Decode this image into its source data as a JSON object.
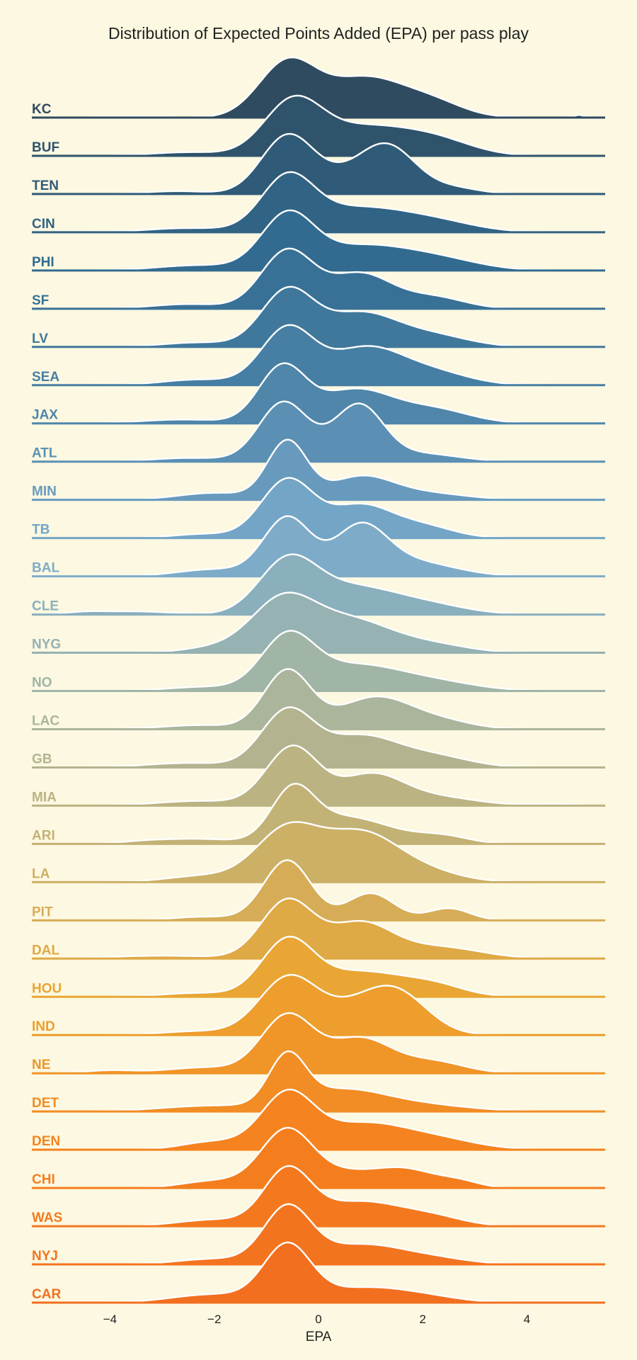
{
  "chart_data": {
    "type": "area",
    "subtype": "ridgeline-density",
    "title": "Distribution of Expected Points Added (EPA) per pass play",
    "xlabel": "EPA",
    "ylabel": "",
    "xlim": [
      -5.5,
      5.5
    ],
    "xticks": [
      -4,
      -2,
      0,
      2,
      4
    ],
    "xtick_labels": [
      "−4",
      "−2",
      "0",
      "2",
      "4"
    ],
    "grid": false,
    "legend": "none",
    "color_scale": [
      "#2f4b60",
      "#316a8e",
      "#4c83a8",
      "#7aabcc",
      "#a7b6a2",
      "#c6b270",
      "#eba531",
      "#f5821e",
      "#f26f1f"
    ],
    "outline_color": "#ffffff",
    "series": [
      {
        "name": "KC",
        "components": [
          [
            -0.6,
            0.55,
            1.0
          ],
          [
            0.9,
            0.75,
            0.72
          ],
          [
            2.2,
            0.6,
            0.25
          ],
          [
            5.0,
            0.08,
            0.05
          ],
          [
            -3.6,
            0.5,
            0.02
          ]
        ]
      },
      {
        "name": "BUF",
        "components": [
          [
            -0.5,
            0.55,
            1.0
          ],
          [
            0.9,
            0.9,
            0.55
          ],
          [
            2.3,
            0.7,
            0.25
          ],
          [
            -2.5,
            0.7,
            0.07
          ]
        ]
      },
      {
        "name": "TEN",
        "components": [
          [
            -0.6,
            0.5,
            1.0
          ],
          [
            1.3,
            0.55,
            0.85
          ],
          [
            0.3,
            0.5,
            0.2
          ],
          [
            2.6,
            0.5,
            0.1
          ],
          [
            -2.7,
            0.6,
            0.05
          ]
        ]
      },
      {
        "name": "CIN",
        "components": [
          [
            -0.6,
            0.5,
            1.0
          ],
          [
            0.7,
            0.9,
            0.45
          ],
          [
            2.2,
            0.8,
            0.2
          ],
          [
            -2.5,
            0.8,
            0.08
          ]
        ]
      },
      {
        "name": "PHI",
        "components": [
          [
            -0.6,
            0.5,
            1.0
          ],
          [
            0.8,
            0.9,
            0.45
          ],
          [
            2.3,
            0.8,
            0.2
          ],
          [
            -2.3,
            0.8,
            0.1
          ]
        ]
      },
      {
        "name": "SF",
        "components": [
          [
            -0.6,
            0.5,
            1.0
          ],
          [
            0.8,
            0.6,
            0.6
          ],
          [
            2.2,
            0.6,
            0.2
          ],
          [
            -2.5,
            0.7,
            0.08
          ]
        ]
      },
      {
        "name": "LV",
        "components": [
          [
            -0.6,
            0.5,
            1.0
          ],
          [
            0.8,
            0.7,
            0.6
          ],
          [
            2.2,
            0.7,
            0.2
          ],
          [
            -2.3,
            0.7,
            0.08
          ]
        ]
      },
      {
        "name": "SEA",
        "components": [
          [
            -0.6,
            0.5,
            1.0
          ],
          [
            0.9,
            0.7,
            0.65
          ],
          [
            2.2,
            0.7,
            0.22
          ],
          [
            -2.3,
            0.7,
            0.1
          ]
        ]
      },
      {
        "name": "JAX",
        "components": [
          [
            -0.7,
            0.45,
            1.0
          ],
          [
            0.7,
            0.7,
            0.6
          ],
          [
            2.2,
            0.7,
            0.25
          ],
          [
            -2.6,
            0.8,
            0.07
          ]
        ]
      },
      {
        "name": "ATL",
        "components": [
          [
            -0.7,
            0.45,
            1.0
          ],
          [
            0.8,
            0.45,
            0.95
          ],
          [
            0.0,
            0.8,
            0.25
          ],
          [
            2.0,
            0.7,
            0.15
          ],
          [
            -2.5,
            0.7,
            0.07
          ]
        ]
      },
      {
        "name": "MIN",
        "components": [
          [
            -0.6,
            0.38,
            1.0
          ],
          [
            0.8,
            0.6,
            0.38
          ],
          [
            2.0,
            0.8,
            0.12
          ],
          [
            -2.0,
            0.7,
            0.12
          ]
        ]
      },
      {
        "name": "TB",
        "components": [
          [
            -0.6,
            0.5,
            1.0
          ],
          [
            0.8,
            0.6,
            0.55
          ],
          [
            2.0,
            0.6,
            0.2
          ],
          [
            -2.2,
            0.6,
            0.07
          ]
        ]
      },
      {
        "name": "BAL",
        "components": [
          [
            -0.6,
            0.45,
            1.0
          ],
          [
            0.8,
            0.5,
            0.8
          ],
          [
            1.8,
            0.8,
            0.25
          ],
          [
            -2.0,
            0.7,
            0.12
          ]
        ]
      },
      {
        "name": "CLE",
        "components": [
          [
            -0.6,
            0.55,
            1.0
          ],
          [
            0.6,
            0.8,
            0.5
          ],
          [
            2.0,
            0.8,
            0.2
          ],
          [
            -3.5,
            0.7,
            0.06
          ],
          [
            -4.5,
            0.4,
            0.04
          ]
        ]
      },
      {
        "name": "NYG",
        "components": [
          [
            -0.7,
            0.6,
            1.0
          ],
          [
            0.6,
            0.8,
            0.65
          ],
          [
            2.2,
            0.7,
            0.15
          ],
          [
            -2.0,
            0.6,
            0.1
          ]
        ]
      },
      {
        "name": "NO",
        "components": [
          [
            -0.6,
            0.5,
            1.0
          ],
          [
            0.7,
            0.9,
            0.5
          ],
          [
            2.3,
            0.8,
            0.15
          ],
          [
            -2.2,
            0.7,
            0.08
          ]
        ]
      },
      {
        "name": "LAC",
        "components": [
          [
            -0.6,
            0.45,
            1.0
          ],
          [
            1.1,
            0.7,
            0.55
          ],
          [
            2.4,
            0.6,
            0.12
          ],
          [
            -2.3,
            0.7,
            0.07
          ]
        ]
      },
      {
        "name": "GB",
        "components": [
          [
            -0.6,
            0.5,
            1.0
          ],
          [
            0.8,
            0.7,
            0.55
          ],
          [
            2.2,
            0.7,
            0.2
          ],
          [
            -2.5,
            0.8,
            0.08
          ]
        ]
      },
      {
        "name": "MIA",
        "components": [
          [
            -0.5,
            0.5,
            1.0
          ],
          [
            1.0,
            0.6,
            0.5
          ],
          [
            2.2,
            0.8,
            0.15
          ],
          [
            -2.3,
            0.8,
            0.08
          ],
          [
            4.5,
            0.4,
            0.03
          ]
        ]
      },
      {
        "name": "ARI",
        "components": [
          [
            -0.5,
            0.4,
            1.0
          ],
          [
            0.5,
            0.9,
            0.6
          ],
          [
            2.4,
            0.5,
            0.15
          ],
          [
            -2.3,
            0.6,
            0.1
          ],
          [
            -3.3,
            0.5,
            0.06
          ]
        ]
      },
      {
        "name": "LA",
        "components": [
          [
            -0.6,
            0.6,
            1.0
          ],
          [
            0.8,
            0.7,
            0.9
          ],
          [
            2.0,
            0.7,
            0.2
          ],
          [
            -2.2,
            0.7,
            0.12
          ]
        ]
      },
      {
        "name": "PIT",
        "components": [
          [
            -0.6,
            0.45,
            1.0
          ],
          [
            1.0,
            0.45,
            0.45
          ],
          [
            2.5,
            0.4,
            0.2
          ],
          [
            -2.2,
            0.6,
            0.06
          ]
        ]
      },
      {
        "name": "DAL",
        "components": [
          [
            -0.6,
            0.5,
            1.0
          ],
          [
            0.8,
            0.6,
            0.6
          ],
          [
            2.3,
            0.8,
            0.2
          ],
          [
            -3.0,
            1.0,
            0.05
          ]
        ]
      },
      {
        "name": "HOU",
        "components": [
          [
            -0.6,
            0.5,
            1.0
          ],
          [
            0.8,
            0.8,
            0.45
          ],
          [
            2.2,
            0.6,
            0.2
          ],
          [
            -2.3,
            0.7,
            0.07
          ]
        ]
      },
      {
        "name": "IND",
        "components": [
          [
            -0.6,
            0.55,
            1.0
          ],
          [
            1.5,
            0.6,
            0.7
          ],
          [
            0.6,
            0.7,
            0.4
          ],
          [
            -2.3,
            0.7,
            0.07
          ]
        ]
      },
      {
        "name": "NE",
        "components": [
          [
            -0.6,
            0.5,
            1.0
          ],
          [
            0.8,
            0.6,
            0.6
          ],
          [
            2.2,
            0.6,
            0.2
          ],
          [
            -2.2,
            0.7,
            0.1
          ],
          [
            -4.0,
            0.5,
            0.05
          ]
        ]
      },
      {
        "name": "DET",
        "components": [
          [
            -0.6,
            0.35,
            1.0
          ],
          [
            0.4,
            0.8,
            0.4
          ],
          [
            1.8,
            1.0,
            0.15
          ],
          [
            -2.0,
            1.0,
            0.12
          ]
        ]
      },
      {
        "name": "DEN",
        "components": [
          [
            -0.6,
            0.5,
            1.0
          ],
          [
            0.8,
            0.8,
            0.45
          ],
          [
            2.2,
            0.8,
            0.2
          ],
          [
            -2.0,
            0.6,
            0.15
          ]
        ]
      },
      {
        "name": "CHI",
        "components": [
          [
            -0.6,
            0.5,
            1.0
          ],
          [
            1.6,
            0.6,
            0.33
          ],
          [
            0.5,
            0.5,
            0.2
          ],
          [
            2.7,
            0.4,
            0.1
          ],
          [
            -2.0,
            0.6,
            0.12
          ]
        ]
      },
      {
        "name": "WAS",
        "components": [
          [
            -0.6,
            0.45,
            1.0
          ],
          [
            0.8,
            0.8,
            0.45
          ],
          [
            2.2,
            0.6,
            0.15
          ],
          [
            -2.0,
            0.7,
            0.12
          ]
        ]
      },
      {
        "name": "NYJ",
        "components": [
          [
            -0.6,
            0.45,
            1.0
          ],
          [
            0.8,
            0.8,
            0.35
          ],
          [
            2.2,
            0.7,
            0.1
          ],
          [
            -2.0,
            0.7,
            0.1
          ]
        ]
      },
      {
        "name": "CAR",
        "components": [
          [
            -0.6,
            0.45,
            1.0
          ],
          [
            0.8,
            0.8,
            0.25
          ],
          [
            2.0,
            0.7,
            0.1
          ],
          [
            -2.0,
            0.8,
            0.15
          ]
        ]
      }
    ]
  }
}
